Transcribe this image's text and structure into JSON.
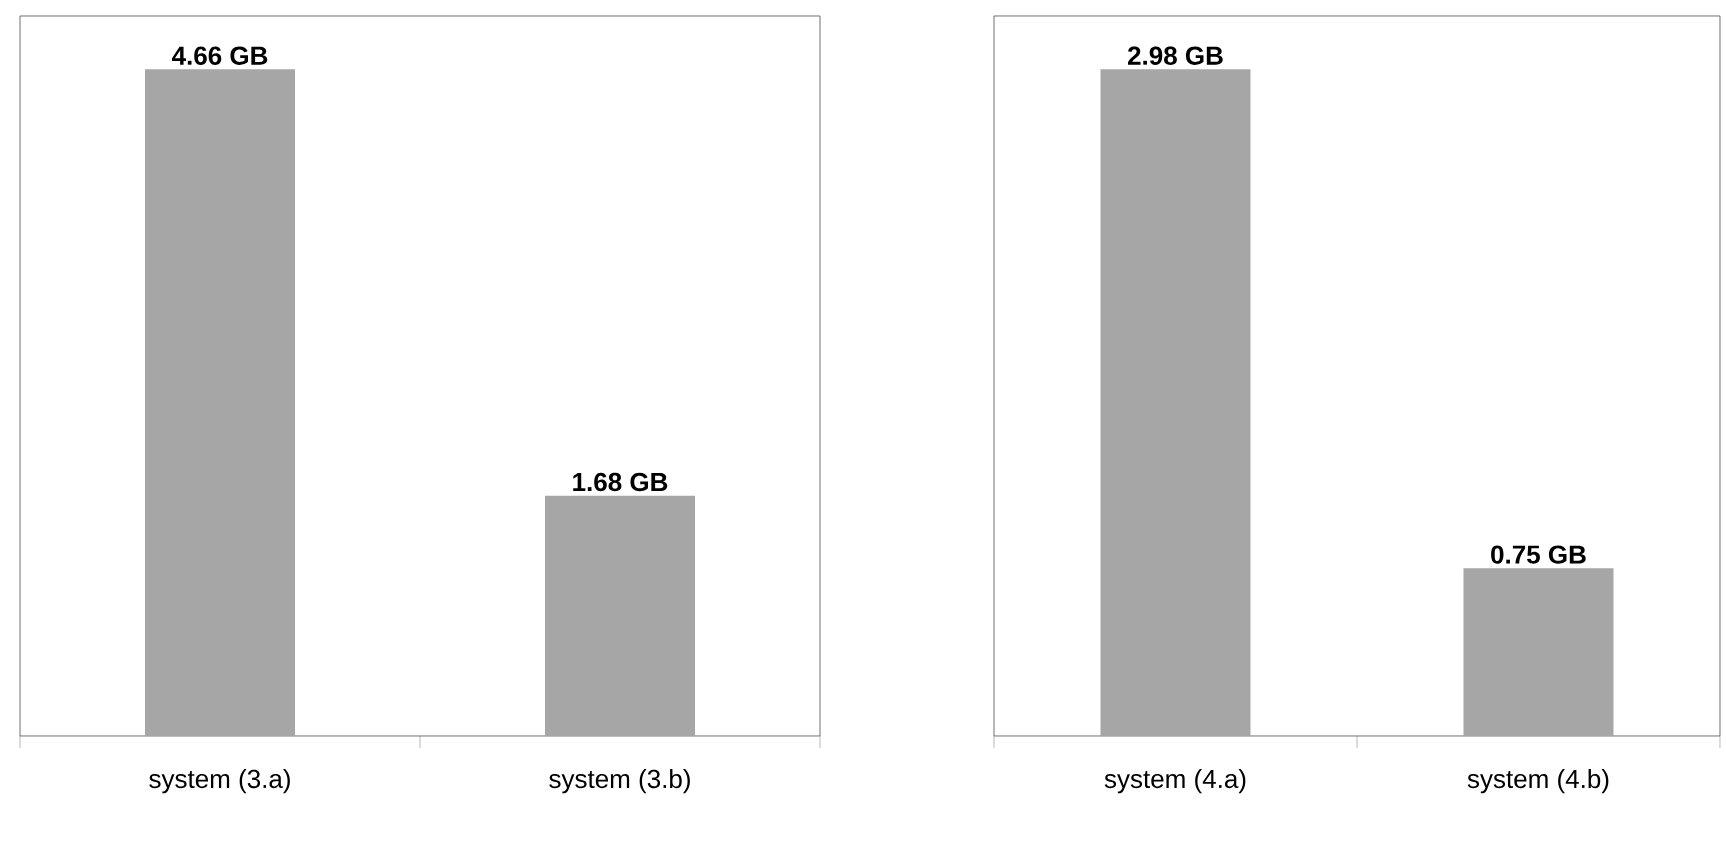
{
  "chart_data": [
    {
      "type": "bar",
      "categories": [
        "system (3.a)",
        "system (3.b)"
      ],
      "values": [
        4.66,
        1.68
      ],
      "value_labels": [
        "4.66 GB",
        "1.68 GB"
      ],
      "color": "#a6a6a6"
    },
    {
      "type": "bar",
      "categories": [
        "system (4.a)",
        "system (4.b)"
      ],
      "values": [
        2.98,
        0.75
      ],
      "value_labels": [
        "2.98 GB",
        "0.75 GB"
      ],
      "color": "#a6a6a6"
    }
  ]
}
